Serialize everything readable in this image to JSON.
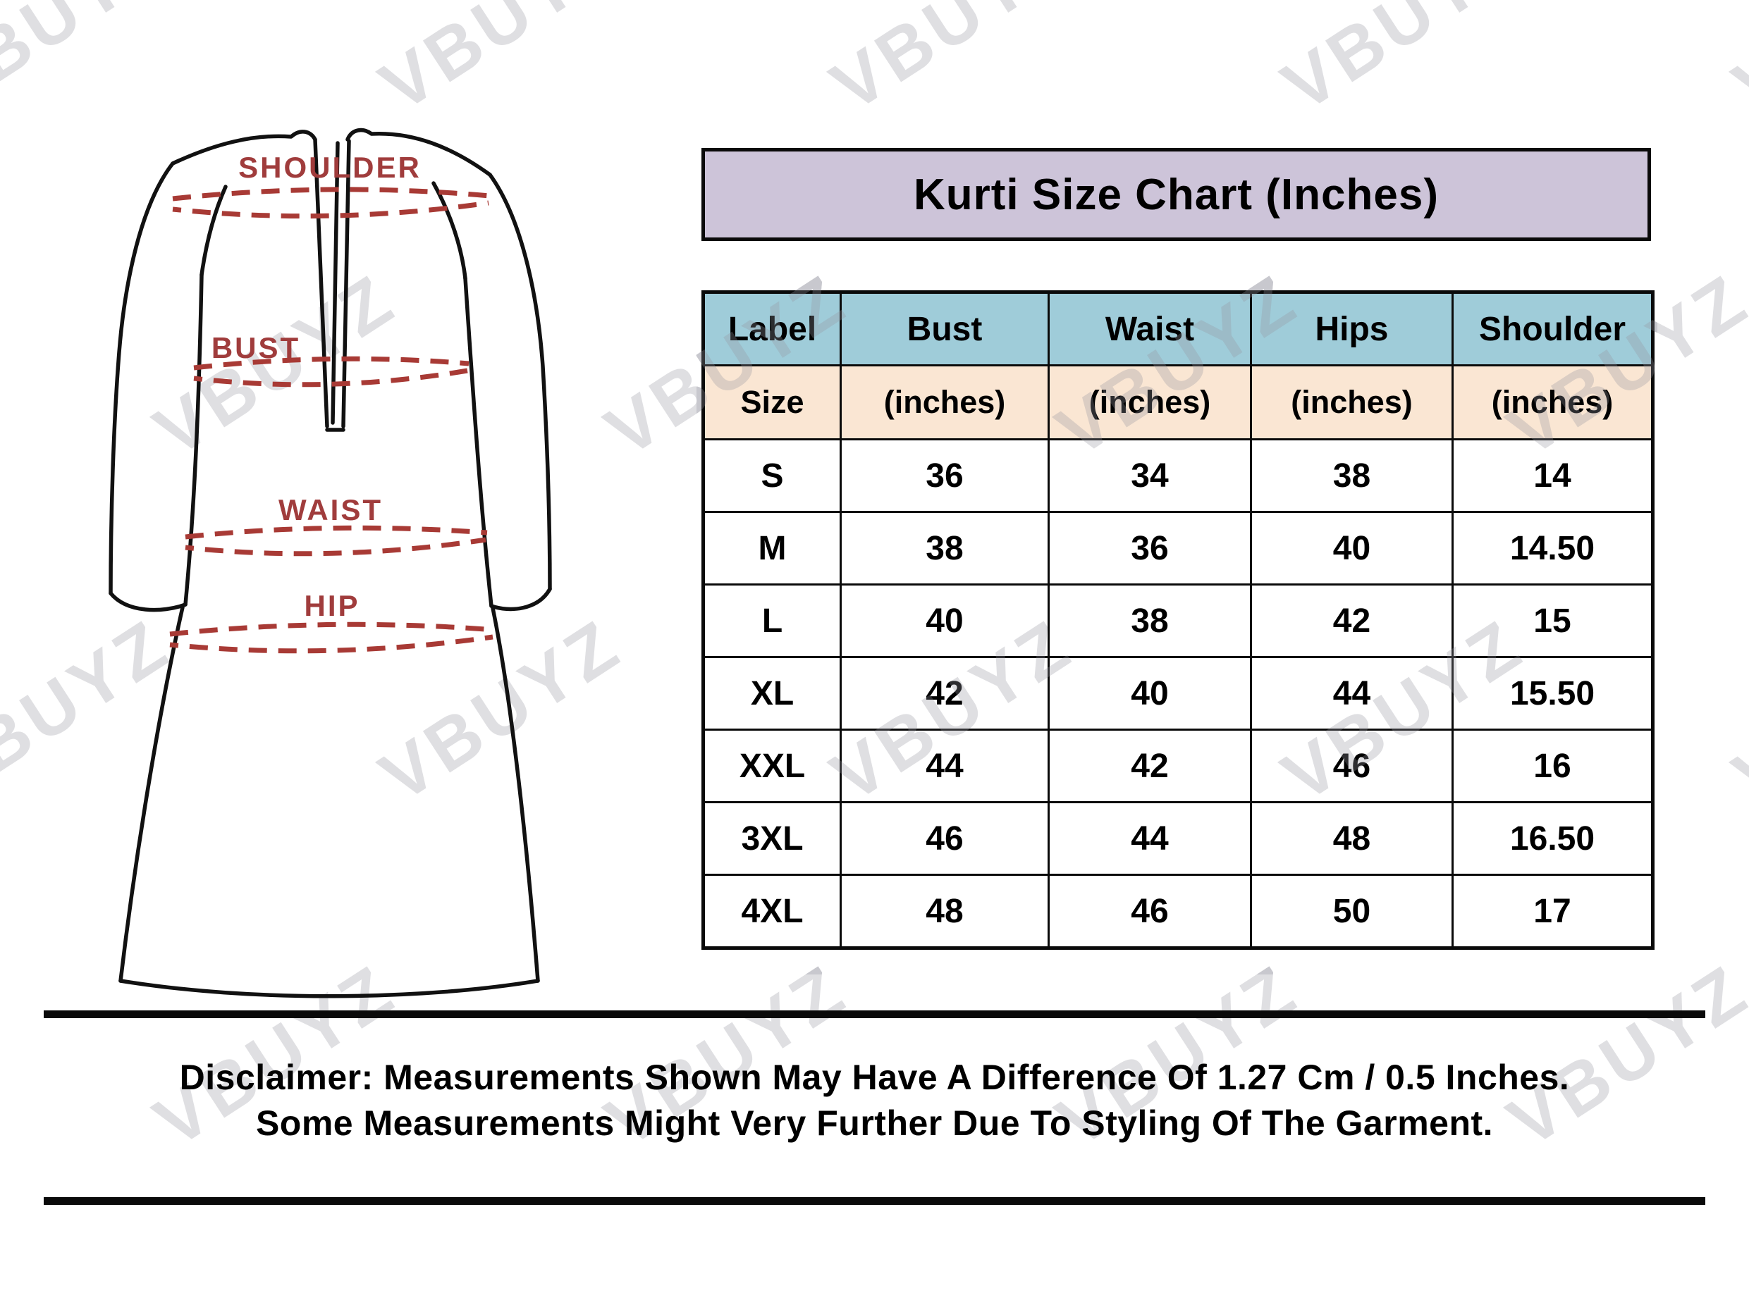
{
  "watermark": {
    "text": "VBUYZ"
  },
  "header": {
    "title": "Kurti Size Chart (Inches)"
  },
  "diagram": {
    "shoulder_label": "SHOULDER",
    "bust_label": "BUST",
    "waist_label": "WAIST",
    "hip_label": "HIP"
  },
  "table": {
    "columns": [
      {
        "label": "Label",
        "unit": "Size"
      },
      {
        "label": "Bust",
        "unit": "(inches)"
      },
      {
        "label": "Waist",
        "unit": "(inches)"
      },
      {
        "label": "Hips",
        "unit": "(inches)"
      },
      {
        "label": "Shoulder",
        "unit": "(inches)"
      }
    ],
    "rows": [
      [
        "S",
        "36",
        "34",
        "38",
        "14"
      ],
      [
        "M",
        "38",
        "36",
        "40",
        "14.50"
      ],
      [
        "L",
        "40",
        "38",
        "42",
        "15"
      ],
      [
        "XL",
        "42",
        "40",
        "44",
        "15.50"
      ],
      [
        "XXL",
        "44",
        "42",
        "46",
        "16"
      ],
      [
        "3XL",
        "46",
        "44",
        "48",
        "16.50"
      ],
      [
        "4XL",
        "48",
        "46",
        "50",
        "17"
      ]
    ]
  },
  "disclaimer": {
    "line1": "Disclaimer: Measurements Shown May Have A Difference Of 1.27 Cm / 0.5 Inches.",
    "line2": "Some Measurements Might Very Further Due To Styling Of The Garment."
  },
  "colors": {
    "title_bg": "#cdc4d9",
    "header_bg": "#9fccd9",
    "subheader_bg": "#fae6d3",
    "measure_line": "#a83a35",
    "outline": "#111111",
    "border": "#0a0a0a"
  },
  "chart_data": {
    "type": "table",
    "title": "Kurti Size Chart (Inches)",
    "columns": [
      "Label / Size",
      "Bust (inches)",
      "Waist (inches)",
      "Hips (inches)",
      "Shoulder (inches)"
    ],
    "rows": [
      [
        "S",
        36,
        34,
        38,
        14
      ],
      [
        "M",
        38,
        36,
        40,
        14.5
      ],
      [
        "L",
        40,
        38,
        42,
        15
      ],
      [
        "XL",
        42,
        40,
        44,
        15.5
      ],
      [
        "XXL",
        44,
        42,
        46,
        16
      ],
      [
        "3XL",
        46,
        44,
        48,
        16.5
      ],
      [
        "4XL",
        48,
        46,
        50,
        17
      ]
    ]
  }
}
